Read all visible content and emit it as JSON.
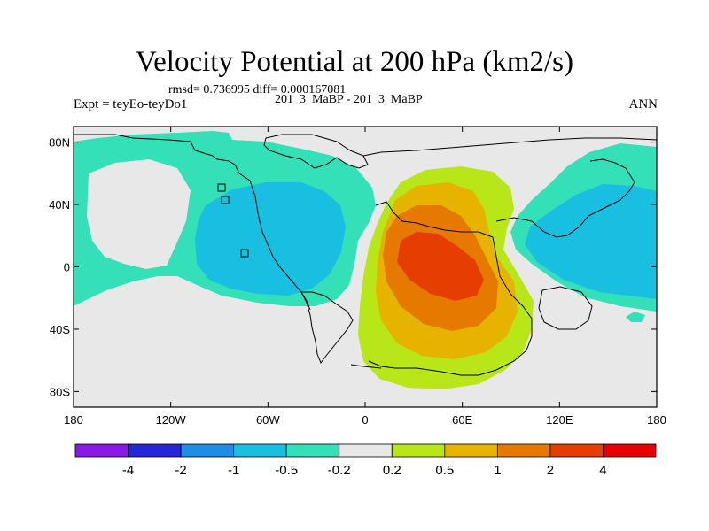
{
  "title": "Velocity Potential at 200 hPa (km2/s)",
  "subtitle_stats": "rmsd= 0.736995 diff= 0.000167081",
  "subtitle_case": "201_3_MaBP - 201_3_MaBP",
  "label_left": "Expt = teyEo-teyDo1",
  "label_right": "ANN",
  "lon_ticks": [
    "180",
    "120W",
    "60W",
    "0",
    "60E",
    "120E",
    "180"
  ],
  "lat_ticks": [
    "80N",
    "40N",
    "0",
    "40S",
    "80S"
  ],
  "colorbar": {
    "labels": [
      "-4",
      "-2",
      "-1",
      "-0.5",
      "-0.2",
      "0.2",
      "0.5",
      "1",
      "2",
      "4"
    ],
    "colors": [
      "#8a19e6",
      "#2626d9",
      "#1f8ce6",
      "#19bfe0",
      "#33e0b8",
      "#e8e8e8",
      "#b8e619",
      "#e6b300",
      "#e67a00",
      "#e63d00",
      "#e60000"
    ]
  },
  "palette": {
    "background": "#e8e8e8",
    "teal": "#33e0b8",
    "blue": "#19bfe0",
    "yellow_green": "#b8e619",
    "orange_yellow": "#e6b300",
    "orange": "#e67a00",
    "red_orange": "#e63d00"
  }
}
